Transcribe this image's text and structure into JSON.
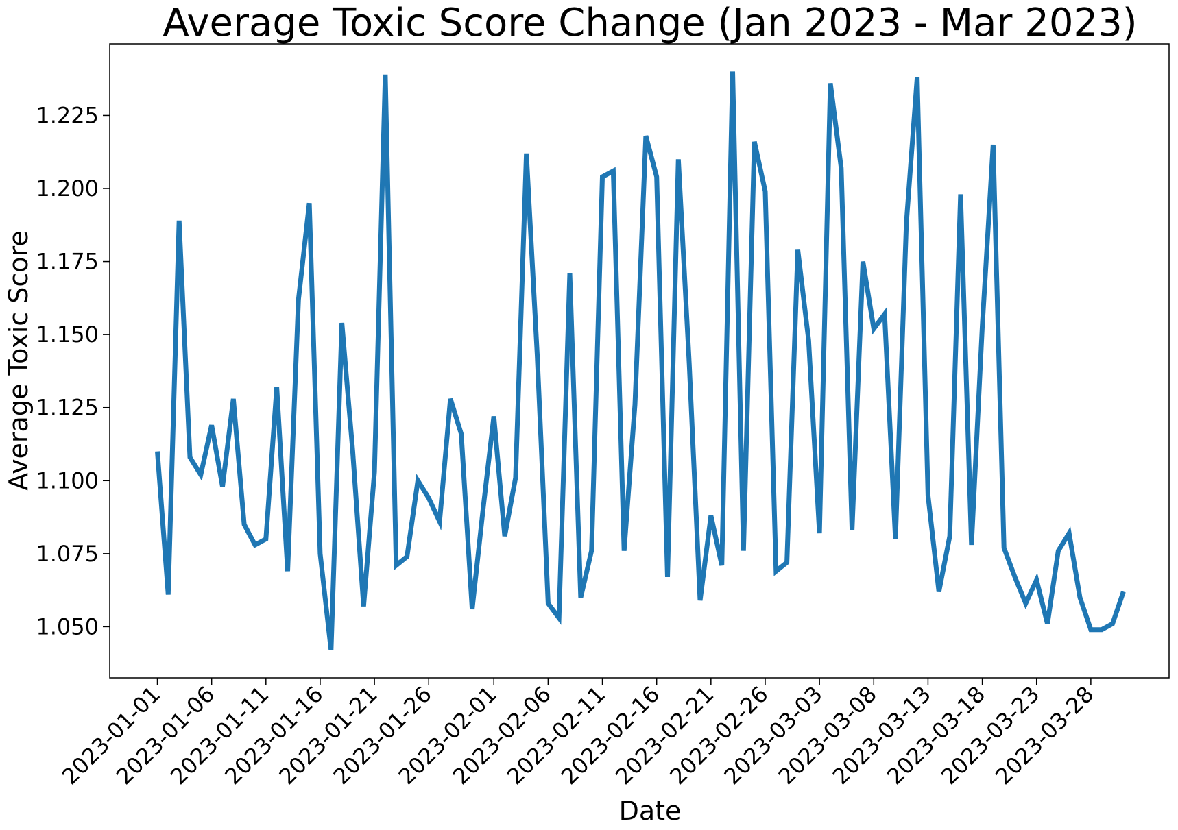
{
  "chart_data": {
    "type": "line",
    "title": "Average Toxic Score Change (Jan 2023 - Mar 2023)",
    "xlabel": "Date",
    "ylabel": "Average Toxic Score",
    "x_tick_labels": [
      "2023-01-01",
      "2023-01-06",
      "2023-01-11",
      "2023-01-16",
      "2023-01-21",
      "2023-01-26",
      "2023-02-01",
      "2023-02-06",
      "2023-02-11",
      "2023-02-16",
      "2023-02-21",
      "2023-02-26",
      "2023-03-03",
      "2023-03-08",
      "2023-03-13",
      "2023-03-18",
      "2023-03-23",
      "2023-03-28"
    ],
    "y_ticks": [
      1.05,
      1.075,
      1.1,
      1.125,
      1.15,
      1.175,
      1.2,
      1.225
    ],
    "y_tick_labels": [
      "1.050",
      "1.075",
      "1.100",
      "1.125",
      "1.150",
      "1.175",
      "1.200",
      "1.225"
    ],
    "ylim": [
      1.0325,
      1.2495
    ],
    "x_start": "2023-01-01",
    "grid": false,
    "series": [
      {
        "color": "#1f77b4",
        "values": [
          1.11,
          1.061,
          1.189,
          1.108,
          1.102,
          1.119,
          1.098,
          1.128,
          1.085,
          1.078,
          1.08,
          1.132,
          1.069,
          1.162,
          1.195,
          1.075,
          1.042,
          1.154,
          1.11,
          1.057,
          1.103,
          1.239,
          1.071,
          1.074,
          1.1,
          1.094,
          1.086,
          1.128,
          1.116,
          1.056,
          1.09,
          1.122,
          1.081,
          1.101,
          1.212,
          1.143,
          1.058,
          1.053,
          1.171,
          1.06,
          1.076,
          1.204,
          1.206,
          1.076,
          1.126,
          1.218,
          1.204,
          1.067,
          1.21,
          1.14,
          1.059,
          1.088,
          1.071,
          1.24,
          1.076,
          1.216,
          1.199,
          1.069,
          1.072,
          1.179,
          1.148,
          1.082,
          1.236,
          1.207,
          1.083,
          1.175,
          1.152,
          1.157,
          1.08,
          1.188,
          1.238,
          1.095,
          1.062,
          1.081,
          1.198,
          1.078,
          1.153,
          1.215,
          1.077,
          1.067,
          1.058,
          1.066,
          1.051,
          1.076,
          1.082,
          1.06,
          1.049,
          1.049,
          1.051,
          1.062
        ]
      }
    ]
  }
}
